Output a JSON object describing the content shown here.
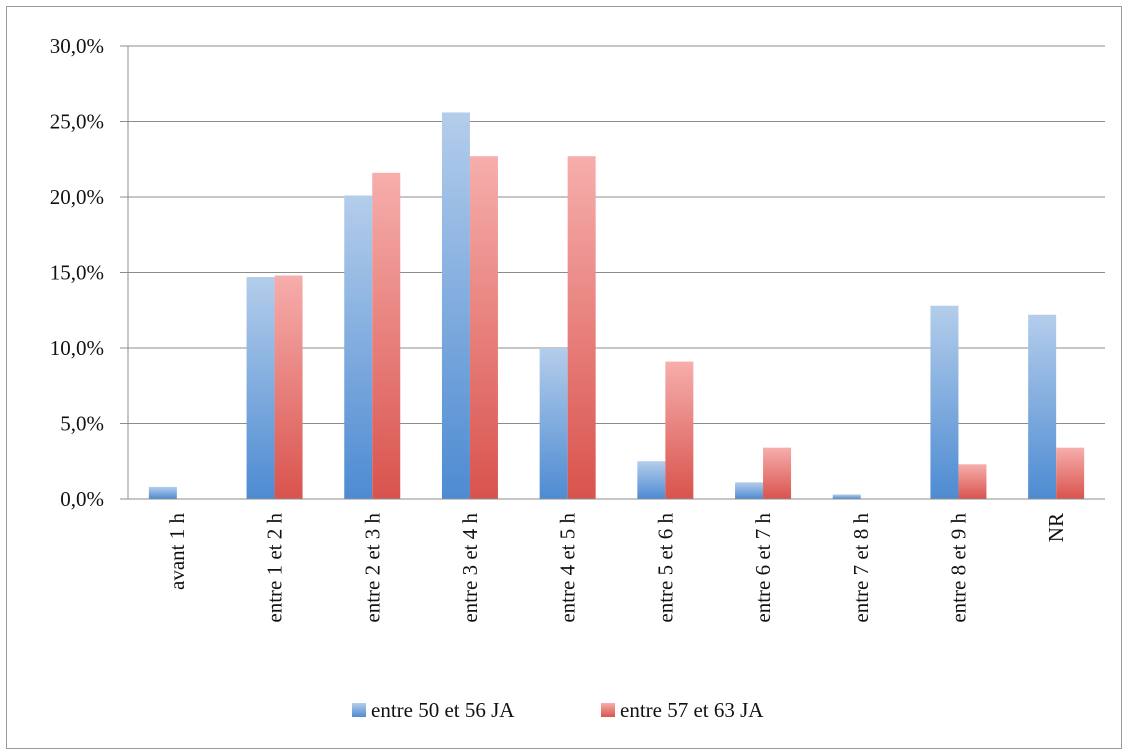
{
  "chart_data": {
    "type": "bar",
    "categories": [
      "avant 1 h",
      "entre 1 et 2 h",
      "entre 2 et 3 h",
      "entre 3 et 4 h",
      "entre 4 et 5 h",
      "entre 5 et 6 h",
      "entre 6 et 7 h",
      "entre 7 et 8 h",
      "entre 8 et 9 h",
      "NR"
    ],
    "series": [
      {
        "name": "entre 50 et 56 JA",
        "values": [
          0.8,
          14.7,
          20.1,
          25.6,
          10.0,
          2.5,
          1.1,
          0.3,
          12.8,
          12.2
        ],
        "color_top": "#b4cdeb",
        "color_bottom": "#4d8bd2"
      },
      {
        "name": "entre 57 et 63 JA",
        "values": [
          0.0,
          14.8,
          21.6,
          22.7,
          22.7,
          9.1,
          3.4,
          0.0,
          2.3,
          3.4
        ],
        "color_top": "#f6aeac",
        "color_bottom": "#d9534d"
      }
    ],
    "yticks": [
      "0,0%",
      "5,0%",
      "10,0%",
      "15,0%",
      "20,0%",
      "25,0%",
      "30,0%"
    ],
    "ylim": [
      0,
      30
    ],
    "grid": true,
    "legend_position": "bottom",
    "title": "",
    "xlabel": "",
    "ylabel": ""
  }
}
